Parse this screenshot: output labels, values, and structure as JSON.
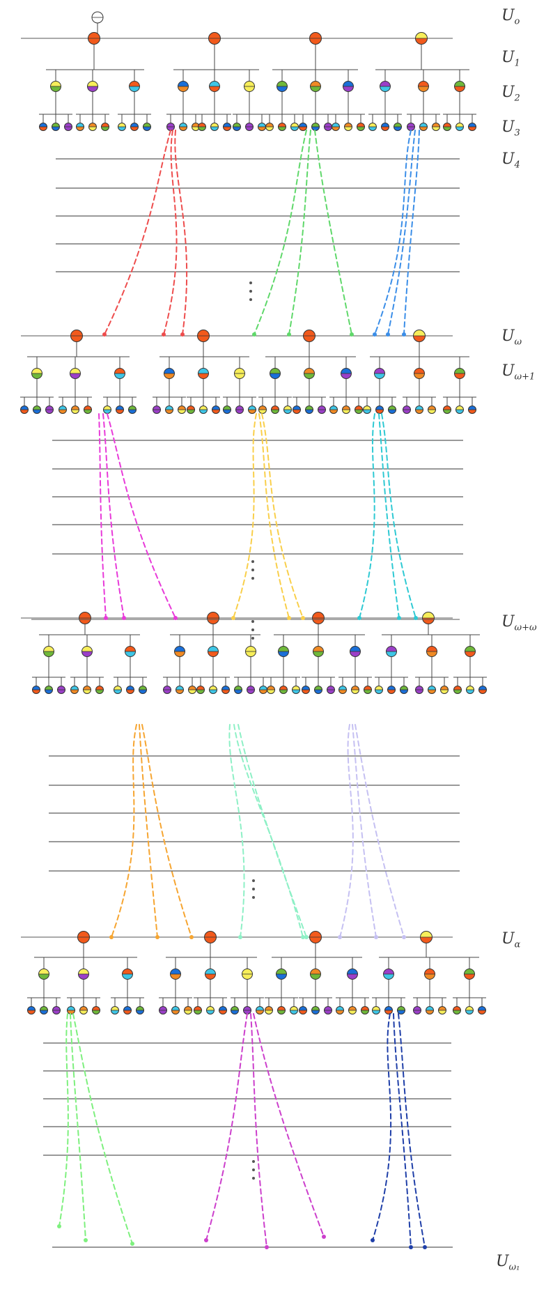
{
  "levels": [
    {
      "key": "u0",
      "base": "U",
      "sub": "o"
    },
    {
      "key": "u1",
      "base": "U",
      "sub": "1"
    },
    {
      "key": "u2",
      "base": "U",
      "sub": "2"
    },
    {
      "key": "u3",
      "base": "U",
      "sub": "3"
    },
    {
      "key": "u4",
      "base": "U",
      "sub": "4"
    },
    {
      "key": "uw",
      "base": "U",
      "sub": "ω"
    },
    {
      "key": "uw1",
      "base": "U",
      "sub": "ω+1"
    },
    {
      "key": "uww",
      "base": "U",
      "sub": "ω+ω"
    },
    {
      "key": "ua",
      "base": "U",
      "sub": "α"
    },
    {
      "key": "uw1b",
      "base": "U",
      "sub": "ω₁"
    }
  ],
  "colors": {
    "red": "#f25a1c",
    "yellow": "#f7ee5a",
    "blue": "#1a6fd8",
    "green": "#6fb83a",
    "purple": "#9b3fc8",
    "cyan": "#3ec6e6",
    "orange": "#f08a24"
  },
  "thread_colors": [
    "#ee4d4d",
    "#5fd86a",
    "#3b8ee8",
    "#e83ad9",
    "#f9cf4a",
    "#2ec9d3",
    "#f6a531",
    "#8ef0c6",
    "#c5c0f2",
    "#7ef07e",
    "#cc3fcc",
    "#1f3fa8"
  ]
}
